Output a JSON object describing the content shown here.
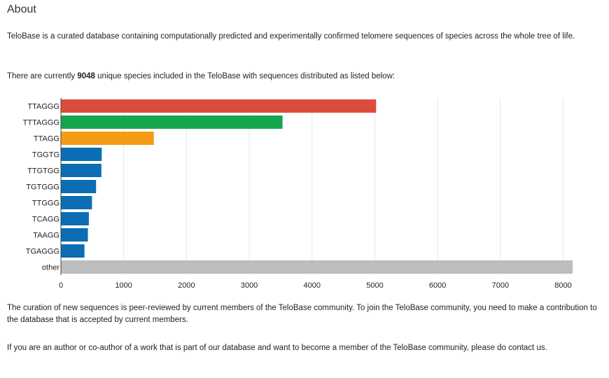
{
  "heading": "About",
  "intro": "TeloBase is a curated database containing computationally predicted and experimentally confirmed telomere sequences of species across the whole tree of life.",
  "count_sentence": {
    "before": "There are currently ",
    "count": "9048",
    "after": " unique species included in the TeloBase with sequences distributed as listed below:"
  },
  "curation": "The curation of new sequences is peer-reviewed by current members of the TeloBase community. To join the TeloBase community, you need to make a contribution to the database that is accepted by current members.",
  "contact": "If you are an author or co-author of a work that is part of our database and want to become a member of the TeloBase community, please do contact us.",
  "chart_data": {
    "type": "bar",
    "orientation": "horizontal",
    "categories": [
      "TTAGGG",
      "TTTAGGG",
      "TTAGG",
      "TGGTG",
      "TTGTGG",
      "TGTGGG",
      "TTGGG",
      "TCAGG",
      "TAAGG",
      "TGAGGG",
      "other"
    ],
    "values": [
      5020,
      3530,
      1480,
      650,
      645,
      560,
      495,
      445,
      430,
      375,
      8150
    ],
    "colors": [
      "#dc4c3c",
      "#14a64e",
      "#f59c16",
      "#0b6db3",
      "#0b6db3",
      "#0b6db3",
      "#0b6db3",
      "#0b6db3",
      "#0b6db3",
      "#0b6db3",
      "#bdbdbd"
    ],
    "xticks": [
      0,
      1000,
      2000,
      3000,
      4000,
      5000,
      6000,
      7000,
      8000
    ],
    "xlim": [
      0,
      8150
    ],
    "grid": true
  }
}
